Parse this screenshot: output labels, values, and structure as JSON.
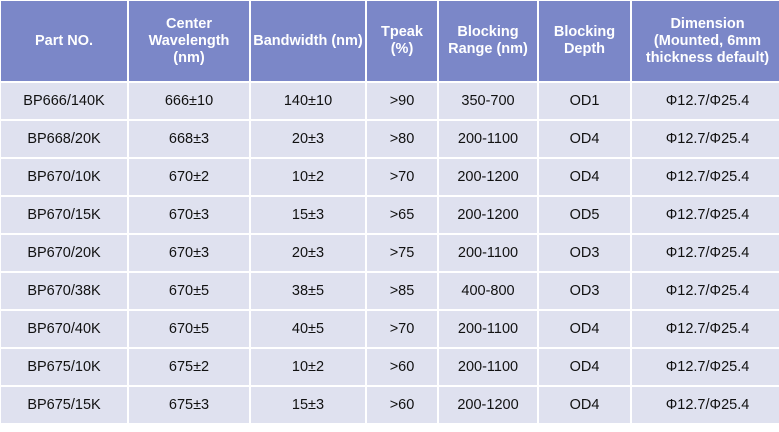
{
  "colors": {
    "header_bg": "#7b87c8",
    "row_bg": "#dfe1ef",
    "grid": "#ffffff"
  },
  "headers": [
    "Part NO.",
    "Center Wavelength (nm)",
    "Bandwidth (nm)",
    "Tpeak (%)",
    "Blocking Range (nm)",
    "Blocking Depth",
    "Dimension (Mounted, 6mm thickness default)"
  ],
  "rows": [
    [
      "BP666/140K",
      "666±10",
      "140±10",
      ">90",
      "350-700",
      "OD1",
      "Φ12.7/Φ25.4"
    ],
    [
      "BP668/20K",
      "668±3",
      "20±3",
      ">80",
      "200-1100",
      "OD4",
      "Φ12.7/Φ25.4"
    ],
    [
      "BP670/10K",
      "670±2",
      "10±2",
      ">70",
      "200-1200",
      "OD4",
      "Φ12.7/Φ25.4"
    ],
    [
      "BP670/15K",
      "670±3",
      "15±3",
      ">65",
      "200-1200",
      "OD5",
      "Φ12.7/Φ25.4"
    ],
    [
      "BP670/20K",
      "670±3",
      "20±3",
      ">75",
      "200-1100",
      "OD3",
      "Φ12.7/Φ25.4"
    ],
    [
      "BP670/38K",
      "670±5",
      "38±5",
      ">85",
      "400-800",
      "OD3",
      "Φ12.7/Φ25.4"
    ],
    [
      "BP670/40K",
      "670±5",
      "40±5",
      ">70",
      "200-1100",
      "OD4",
      "Φ12.7/Φ25.4"
    ],
    [
      "BP675/10K",
      "675±2",
      "10±2",
      ">60",
      "200-1100",
      "OD4",
      "Φ12.7/Φ25.4"
    ],
    [
      "BP675/15K",
      "675±3",
      "15±3",
      ">60",
      "200-1200",
      "OD4",
      "Φ12.7/Φ25.4"
    ]
  ]
}
